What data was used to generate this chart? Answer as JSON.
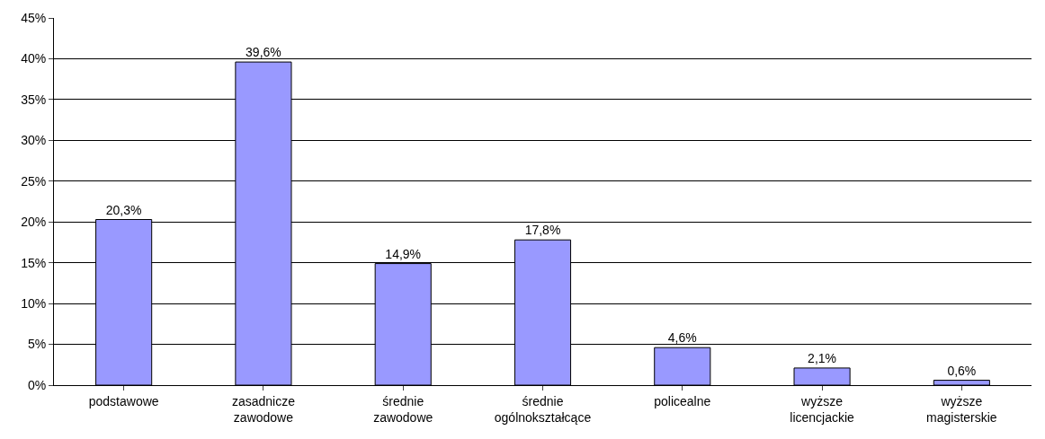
{
  "chart_data": {
    "type": "bar",
    "categories": [
      "podstawowe",
      "zasadnicze zawodowe",
      "średnie zawodowe",
      "średnie ogólnokształcące",
      "policealne",
      "wyższe licencjackie",
      "wyższe magisterskie"
    ],
    "values": [
      20.3,
      39.6,
      14.9,
      17.8,
      4.6,
      2.1,
      0.6
    ],
    "value_labels": [
      "20,3%",
      "39,6%",
      "14,9%",
      "17,8%",
      "4,6%",
      "2,1%",
      "0,6%"
    ],
    "color": "#9999ff",
    "ylim": [
      0,
      45
    ],
    "yticks": [
      {
        "value": 0,
        "label": "0%"
      },
      {
        "value": 5,
        "label": "5%"
      },
      {
        "value": 10,
        "label": "10%"
      },
      {
        "value": 15,
        "label": "15%"
      },
      {
        "value": 20,
        "label": "20%"
      },
      {
        "value": 25,
        "label": "25%"
      },
      {
        "value": 30,
        "label": "30%"
      },
      {
        "value": 35,
        "label": "35%"
      },
      {
        "value": 40,
        "label": "40%"
      },
      {
        "value": 45,
        "label": "45%"
      }
    ],
    "grid": "y",
    "legend": false
  }
}
